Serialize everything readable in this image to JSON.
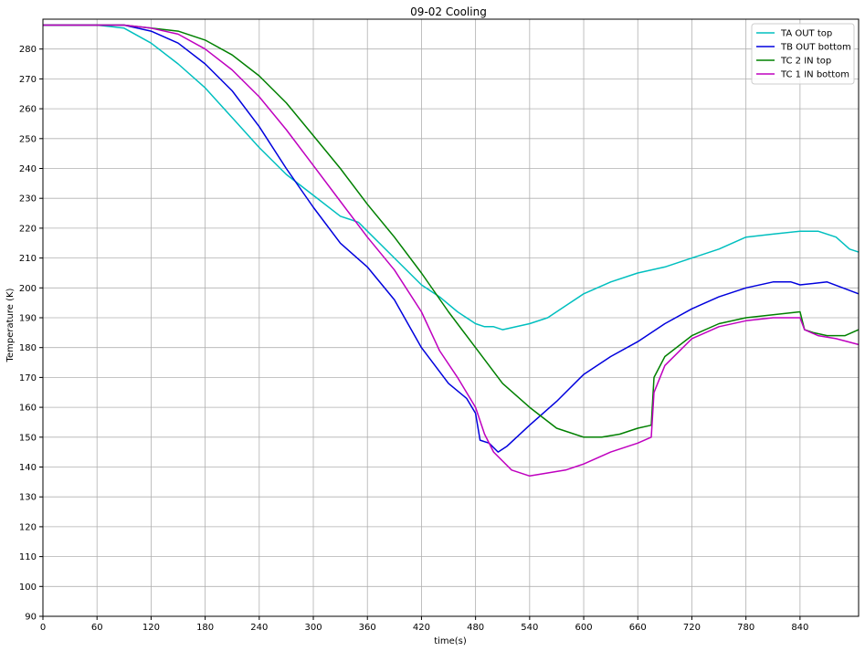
{
  "chart_data": {
    "type": "line",
    "title": "09-02 Cooling",
    "xlabel": "time(s)",
    "ylabel": "Temperature (K)",
    "xlim": [
      0,
      905
    ],
    "ylim": [
      90,
      290
    ],
    "xticks": [
      0,
      60,
      120,
      180,
      240,
      300,
      360,
      420,
      480,
      540,
      600,
      660,
      720,
      780,
      840
    ],
    "yticks": [
      90,
      100,
      110,
      120,
      130,
      140,
      150,
      160,
      170,
      180,
      190,
      200,
      210,
      220,
      230,
      240,
      250,
      260,
      270,
      280
    ],
    "grid": true,
    "legend_position": "top-right",
    "series": [
      {
        "name": "TA OUT top",
        "color": "#00bfbf",
        "x": [
          0,
          60,
          90,
          120,
          150,
          180,
          210,
          240,
          270,
          300,
          330,
          350,
          360,
          390,
          420,
          440,
          460,
          480,
          490,
          500,
          510,
          540,
          560,
          580,
          600,
          630,
          660,
          690,
          720,
          750,
          780,
          810,
          840,
          860,
          880,
          895,
          905
        ],
        "y": [
          288,
          288,
          287,
          282,
          275,
          267,
          257,
          247,
          238,
          231,
          224,
          222,
          219,
          210,
          201,
          197,
          192,
          188,
          187,
          187,
          186,
          188,
          190,
          194,
          198,
          202,
          205,
          207,
          210,
          213,
          217,
          218,
          219,
          219,
          217,
          213,
          212
        ]
      },
      {
        "name": "TB OUT bottom",
        "color": "#0000dd",
        "x": [
          0,
          60,
          90,
          120,
          150,
          180,
          210,
          240,
          270,
          300,
          330,
          360,
          390,
          420,
          450,
          470,
          480,
          485,
          495,
          505,
          515,
          540,
          570,
          600,
          630,
          660,
          690,
          720,
          750,
          780,
          810,
          830,
          840,
          870,
          905
        ],
        "y": [
          288,
          288,
          288,
          286,
          282,
          275,
          266,
          254,
          240,
          227,
          215,
          207,
          196,
          180,
          168,
          163,
          158,
          149,
          148,
          145,
          147,
          154,
          162,
          171,
          177,
          182,
          188,
          193,
          197,
          200,
          202,
          202,
          201,
          202,
          198
        ]
      },
      {
        "name": "TC 2 IN top",
        "color": "#008000",
        "x": [
          0,
          60,
          90,
          120,
          150,
          180,
          210,
          240,
          270,
          300,
          330,
          360,
          390,
          420,
          450,
          480,
          510,
          540,
          570,
          600,
          620,
          640,
          660,
          675,
          678,
          690,
          720,
          750,
          780,
          810,
          840,
          845,
          855,
          870,
          890,
          905
        ],
        "y": [
          288,
          288,
          288,
          287,
          286,
          283,
          278,
          271,
          262,
          251,
          240,
          228,
          217,
          205,
          192,
          180,
          168,
          160,
          153,
          150,
          150,
          151,
          153,
          154,
          170,
          177,
          184,
          188,
          190,
          191,
          192,
          186,
          185,
          184,
          184,
          186
        ]
      },
      {
        "name": "TC 1 IN bottom",
        "color": "#bf00bf",
        "x": [
          0,
          60,
          90,
          120,
          150,
          180,
          210,
          240,
          270,
          300,
          330,
          360,
          390,
          420,
          440,
          460,
          480,
          490,
          500,
          520,
          540,
          560,
          580,
          600,
          630,
          660,
          675,
          678,
          690,
          720,
          750,
          780,
          810,
          840,
          845,
          860,
          880,
          905
        ],
        "y": [
          288,
          288,
          288,
          287,
          285,
          280,
          273,
          264,
          253,
          241,
          229,
          217,
          206,
          192,
          179,
          170,
          160,
          151,
          145,
          139,
          137,
          138,
          139,
          141,
          145,
          148,
          150,
          165,
          174,
          183,
          187,
          189,
          190,
          190,
          186,
          184,
          183,
          181
        ]
      }
    ]
  }
}
